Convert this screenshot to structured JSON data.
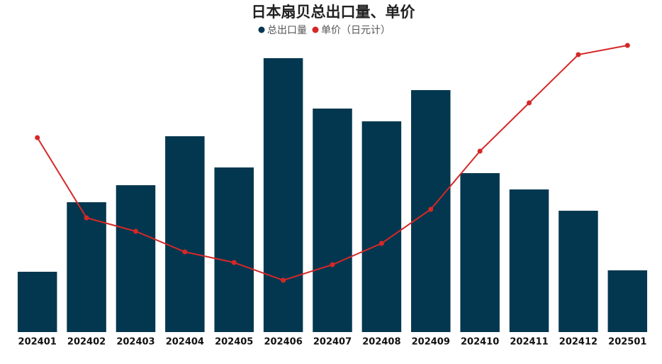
{
  "chart_data": {
    "type": "bar-line",
    "title": "日本扇贝总出口量、单价",
    "categories": [
      "202401",
      "202402",
      "202403",
      "202404",
      "202405",
      "202406",
      "202407",
      "202408",
      "202409",
      "202410",
      "202411",
      "202412",
      "202501"
    ],
    "series": [
      {
        "name": "总出口量",
        "type": "bar",
        "color": "#03374f",
        "values": [
          85,
          183,
          207,
          276,
          232,
          386,
          315,
          297,
          341,
          224,
          201,
          171,
          87
        ]
      },
      {
        "name": "单价（日元计）",
        "type": "line",
        "axis": "y2",
        "color": "#d62728",
        "values": [
          274,
          161,
          142,
          113,
          98,
          73,
          95,
          125,
          173,
          255,
          323,
          391,
          404
        ]
      }
    ],
    "ylim": [
      0,
      408
    ],
    "y2lim": [
      0,
      408
    ],
    "grid": false,
    "legend": "top"
  }
}
